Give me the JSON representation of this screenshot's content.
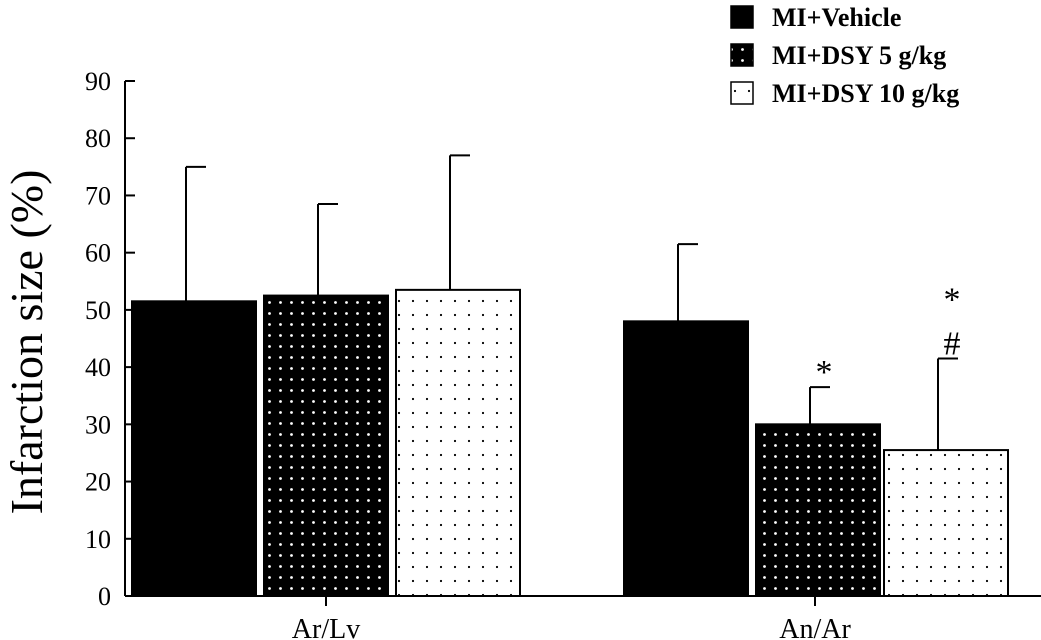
{
  "chart_data": {
    "type": "bar",
    "ylabel": "Infarction size (%)",
    "xlabel": "",
    "ylim": [
      0,
      90
    ],
    "yticks": [
      0,
      10,
      20,
      30,
      40,
      50,
      60,
      70,
      80,
      90
    ],
    "categories": [
      "Ar/Lv",
      "An/Ar"
    ],
    "legend_position": "top-right",
    "grid": false,
    "series": [
      {
        "name": "MI+Vehicle",
        "pattern": "solid",
        "values": [
          51.5,
          48
        ],
        "errors": [
          23.5,
          13.5
        ]
      },
      {
        "name": "MI+DSY 5 g/kg",
        "pattern": "dense-dots",
        "values": [
          52.5,
          30
        ],
        "errors": [
          16,
          6.5
        ]
      },
      {
        "name": "MI+DSY 10 g/kg",
        "pattern": "sparse-dots",
        "values": [
          53.5,
          25.5
        ],
        "errors": [
          23.5,
          16
        ]
      }
    ],
    "annotations": [
      {
        "category": "An/Ar",
        "series": "MI+DSY 5 g/kg",
        "text": "*"
      },
      {
        "category": "An/Ar",
        "series": "MI+DSY 10 g/kg",
        "text": "*"
      },
      {
        "category": "An/Ar",
        "series": "MI+DSY 10 g/kg",
        "text": "#"
      }
    ],
    "colors": {
      "bar": "#000000",
      "axis": "#000000",
      "background": "#ffffff"
    }
  }
}
